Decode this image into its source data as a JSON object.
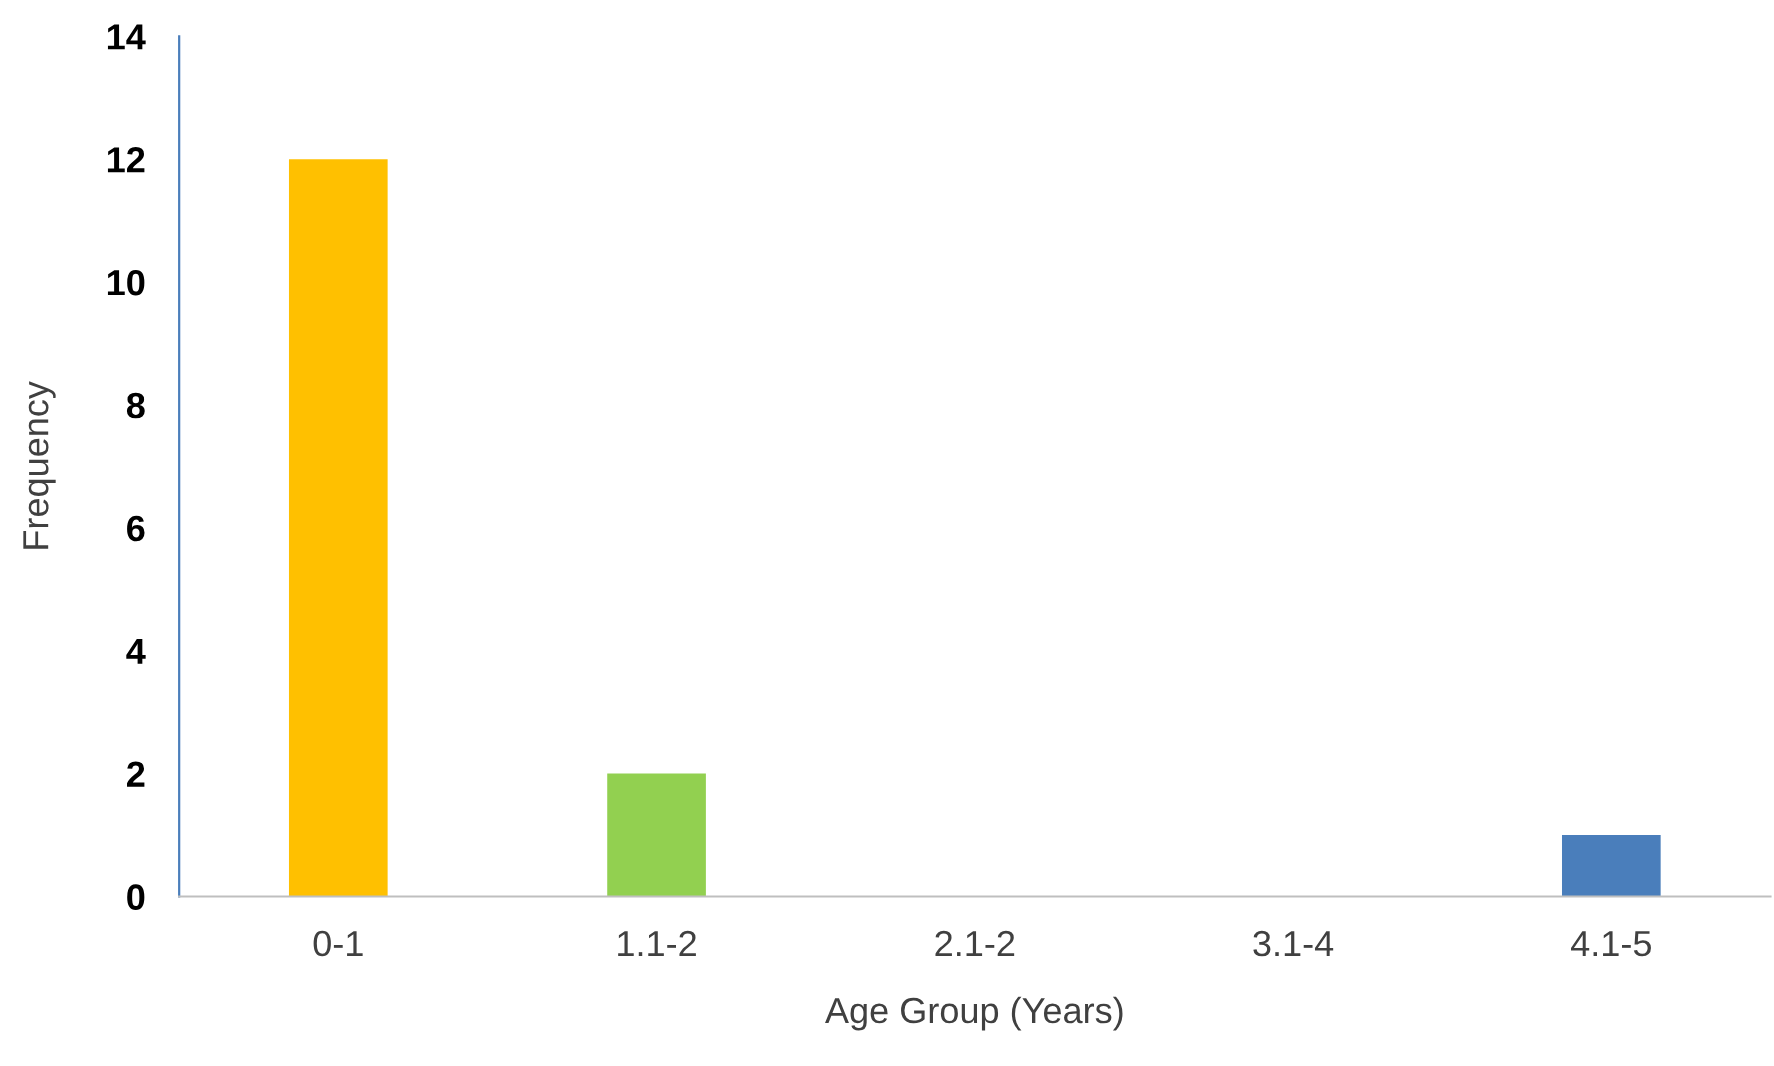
{
  "chart_data": {
    "type": "bar",
    "xlabel": "Age Group (Years)",
    "ylabel": "Frequency",
    "categories": [
      "0-1",
      "1.1-2",
      "2.1-2",
      "3.1-4",
      "4.1-5"
    ],
    "values": [
      12,
      2,
      0,
      0,
      1
    ],
    "colors": [
      "#ffc000",
      "#92d050",
      "#a5a5a5",
      "#a5a5a5",
      "#4a7ebb"
    ],
    "ylim": [
      0,
      14
    ],
    "yticks": [
      0,
      2,
      4,
      6,
      8,
      10,
      12,
      14
    ],
    "grid": false,
    "legend": false
  }
}
